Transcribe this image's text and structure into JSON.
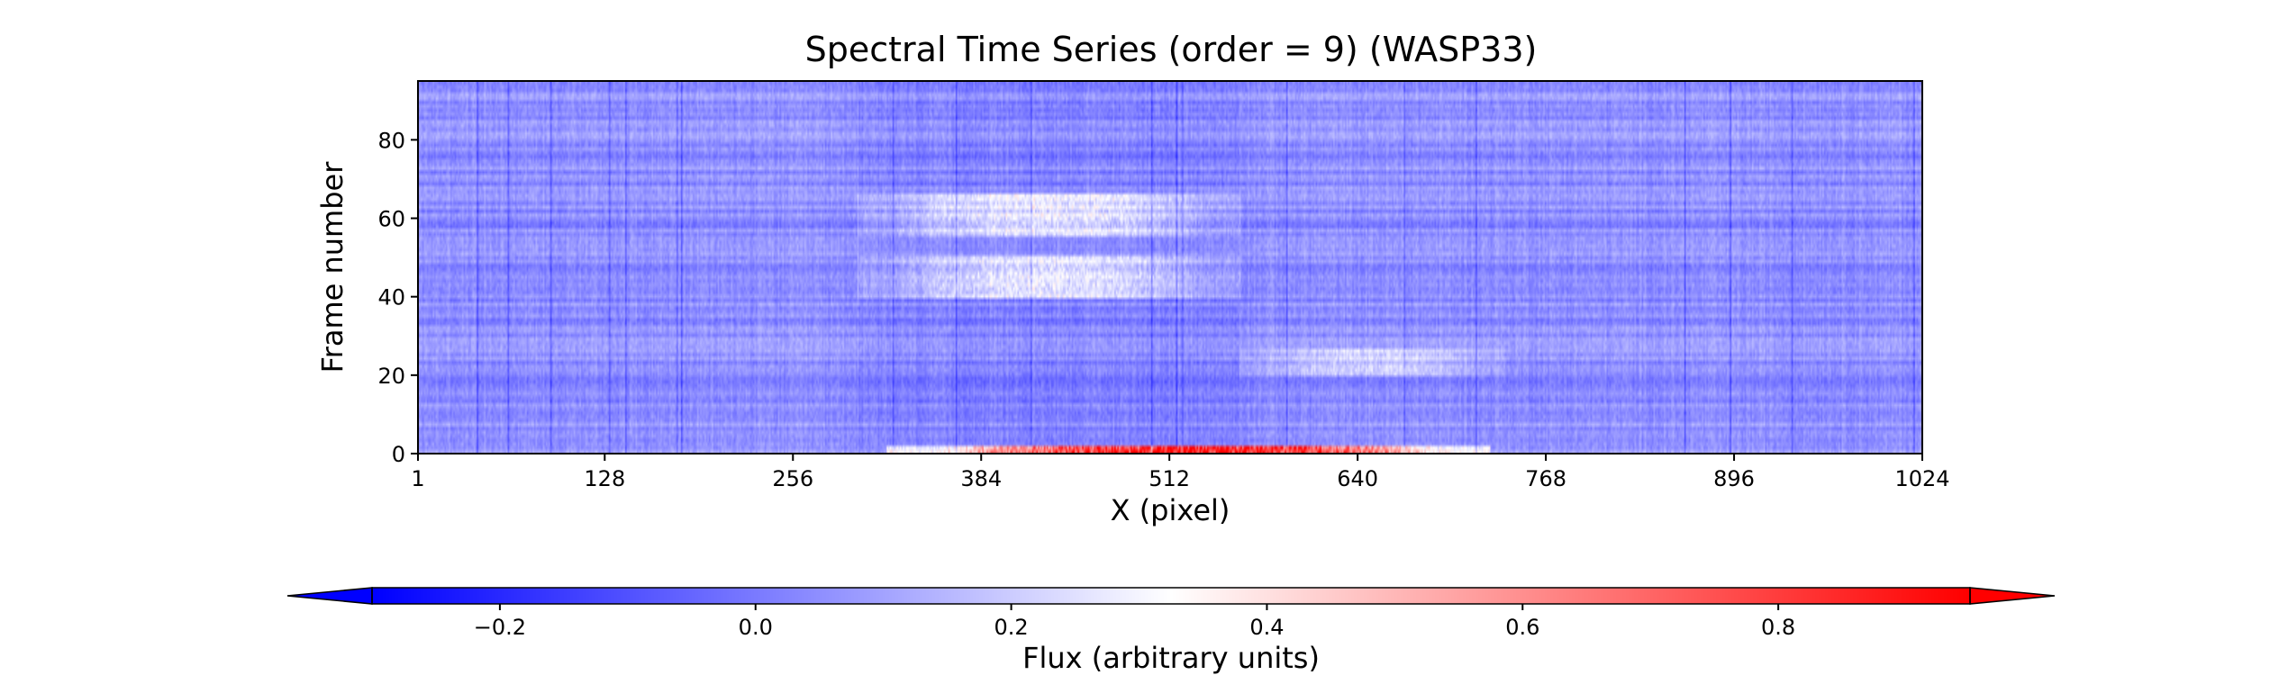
{
  "chart_data": {
    "type": "heatmap",
    "title": "Spectral Time Series (order = 9) (WASP33)",
    "xlabel": "X (pixel)",
    "ylabel": "Frame number",
    "xlim": [
      1,
      1024
    ],
    "ylim": [
      0,
      95
    ],
    "x_ticks": [
      1,
      128,
      256,
      384,
      512,
      640,
      768,
      896,
      1024
    ],
    "y_ticks": [
      0,
      20,
      40,
      60,
      80
    ],
    "grid": false,
    "colormap": "bwr",
    "colorbar": {
      "label": "Flux (arbitrary units)",
      "orientation": "horizontal",
      "placement": "bottom",
      "range": [
        -0.3,
        0.95
      ],
      "ticks": [
        -0.2,
        0.0,
        0.2,
        0.4,
        0.6,
        0.8
      ],
      "tick_labels": [
        "−0.2",
        "0.0",
        "0.2",
        "0.4",
        "0.6",
        "0.8"
      ],
      "extend": "both",
      "color_low": "#0000ff",
      "color_mid": "#ffffff",
      "color_high": "#ff0000"
    },
    "frame_count": 96,
    "typical_value": 0.05,
    "features": [
      {
        "frames": [
          56,
          66
        ],
        "x_range": [
          300,
          560
        ],
        "value": 0.3
      },
      {
        "frames": [
          40,
          50
        ],
        "x_range": [
          300,
          560
        ],
        "value": 0.3
      },
      {
        "frames": [
          20,
          26
        ],
        "x_range": [
          560,
          740
        ],
        "value": 0.2
      },
      {
        "frames": [
          0,
          1
        ],
        "x_range": [
          320,
          730
        ],
        "value": 0.9
      }
    ]
  }
}
